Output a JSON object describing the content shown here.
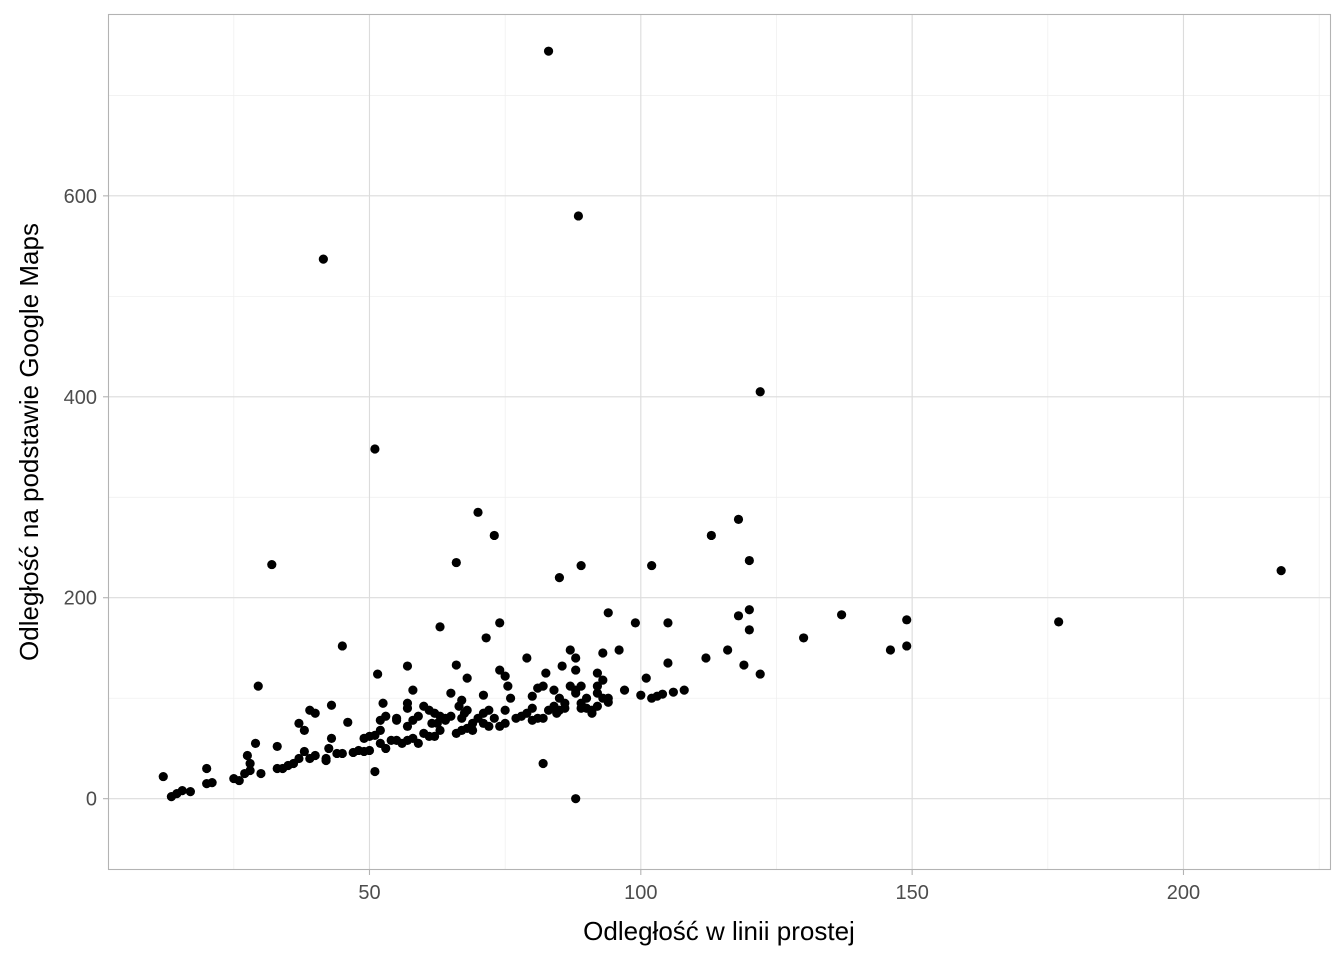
{
  "chart_data": {
    "type": "scatter",
    "title": "",
    "xlabel": "Odległość w linii prostej",
    "ylabel": "Odległość na podstawie Google Maps",
    "xlim": [
      2,
      227
    ],
    "ylim": [
      -70,
      780
    ],
    "x_ticks": [
      50,
      100,
      150,
      200
    ],
    "y_ticks": [
      0,
      200,
      400,
      600
    ],
    "x_tick_labels": [
      "50",
      "100",
      "150",
      "200"
    ],
    "y_tick_labels": [
      "0",
      "200",
      "400",
      "600"
    ],
    "grid": true,
    "point_color": "#000000",
    "points": [
      [
        12,
        22
      ],
      [
        13.5,
        2
      ],
      [
        14.5,
        5
      ],
      [
        15.5,
        8
      ],
      [
        17,
        7
      ],
      [
        20,
        15
      ],
      [
        21,
        16
      ],
      [
        20,
        30
      ],
      [
        25,
        20
      ],
      [
        26,
        18
      ],
      [
        27,
        25
      ],
      [
        27.5,
        43
      ],
      [
        28,
        35
      ],
      [
        28,
        28
      ],
      [
        29,
        55
      ],
      [
        29.5,
        112
      ],
      [
        30,
        25
      ],
      [
        32,
        233
      ],
      [
        33,
        52
      ],
      [
        33,
        30
      ],
      [
        34,
        30
      ],
      [
        35,
        33
      ],
      [
        36,
        35
      ],
      [
        37,
        40
      ],
      [
        37,
        75
      ],
      [
        38,
        68
      ],
      [
        38,
        47
      ],
      [
        39,
        88
      ],
      [
        39,
        40
      ],
      [
        40,
        85
      ],
      [
        40,
        43
      ],
      [
        41.5,
        537
      ],
      [
        42,
        38
      ],
      [
        42,
        40
      ],
      [
        42.5,
        50
      ],
      [
        43,
        60
      ],
      [
        43,
        93
      ],
      [
        44,
        45
      ],
      [
        45,
        45
      ],
      [
        45,
        152
      ],
      [
        46,
        76
      ],
      [
        47,
        46
      ],
      [
        48,
        48
      ],
      [
        49,
        60
      ],
      [
        49,
        47
      ],
      [
        50,
        62
      ],
      [
        50,
        48
      ],
      [
        51,
        63
      ],
      [
        51,
        27
      ],
      [
        51,
        348
      ],
      [
        51.5,
        124
      ],
      [
        52,
        78
      ],
      [
        52,
        68
      ],
      [
        52,
        55
      ],
      [
        52.5,
        95
      ],
      [
        53,
        82
      ],
      [
        53,
        50
      ],
      [
        54,
        58
      ],
      [
        55,
        78
      ],
      [
        55,
        58
      ],
      [
        55,
        80
      ],
      [
        56,
        55
      ],
      [
        57,
        132
      ],
      [
        57,
        90
      ],
      [
        57,
        72
      ],
      [
        57,
        58
      ],
      [
        57,
        95
      ],
      [
        58,
        78
      ],
      [
        58,
        108
      ],
      [
        58,
        60
      ],
      [
        59,
        82
      ],
      [
        59,
        55
      ],
      [
        60,
        65
      ],
      [
        60,
        92
      ],
      [
        61,
        88
      ],
      [
        61,
        62
      ],
      [
        61.5,
        75
      ],
      [
        62,
        62
      ],
      [
        62,
        85
      ],
      [
        62.5,
        75
      ],
      [
        63,
        68
      ],
      [
        63,
        82
      ],
      [
        63,
        171
      ],
      [
        64,
        80
      ],
      [
        64,
        78
      ],
      [
        65,
        105
      ],
      [
        65,
        82
      ],
      [
        66,
        133
      ],
      [
        66,
        65
      ],
      [
        66,
        235
      ],
      [
        66.5,
        92
      ],
      [
        67,
        80
      ],
      [
        67,
        98
      ],
      [
        67,
        68
      ],
      [
        67.5,
        85
      ],
      [
        68,
        88
      ],
      [
        68,
        120
      ],
      [
        68,
        70
      ],
      [
        69,
        75
      ],
      [
        69,
        68
      ],
      [
        70,
        285
      ],
      [
        70,
        80
      ],
      [
        71,
        75
      ],
      [
        71,
        103
      ],
      [
        71,
        85
      ],
      [
        71.5,
        160
      ],
      [
        72,
        72
      ],
      [
        72,
        88
      ],
      [
        73,
        262
      ],
      [
        73,
        80
      ],
      [
        74,
        175
      ],
      [
        74,
        128
      ],
      [
        74,
        72
      ],
      [
        75,
        122
      ],
      [
        75,
        88
      ],
      [
        75,
        75
      ],
      [
        75.5,
        112
      ],
      [
        76,
        100
      ],
      [
        77,
        80
      ],
      [
        78,
        82
      ],
      [
        79,
        85
      ],
      [
        79,
        140
      ],
      [
        80,
        90
      ],
      [
        80,
        102
      ],
      [
        80,
        78
      ],
      [
        81,
        80
      ],
      [
        81,
        110
      ],
      [
        82,
        112
      ],
      [
        82,
        80
      ],
      [
        82,
        35
      ],
      [
        82.5,
        125
      ],
      [
        83,
        88
      ],
      [
        83,
        744
      ],
      [
        84,
        108
      ],
      [
        84,
        92
      ],
      [
        84.5,
        85
      ],
      [
        85,
        88
      ],
      [
        85,
        100
      ],
      [
        85,
        220
      ],
      [
        85.5,
        132
      ],
      [
        86,
        95
      ],
      [
        86,
        90
      ],
      [
        87,
        148
      ],
      [
        87,
        112
      ],
      [
        88,
        128
      ],
      [
        88,
        140
      ],
      [
        88,
        108
      ],
      [
        88,
        105
      ],
      [
        88,
        0
      ],
      [
        88.5,
        580
      ],
      [
        89,
        90
      ],
      [
        89,
        232
      ],
      [
        89,
        112
      ],
      [
        89,
        95
      ],
      [
        90,
        100
      ],
      [
        90,
        90
      ],
      [
        91,
        88
      ],
      [
        91,
        85
      ],
      [
        92,
        125
      ],
      [
        92,
        112
      ],
      [
        92,
        105
      ],
      [
        92,
        92
      ],
      [
        93,
        145
      ],
      [
        93,
        118
      ],
      [
        93,
        100
      ],
      [
        94,
        185
      ],
      [
        94,
        100
      ],
      [
        94,
        96
      ],
      [
        96,
        148
      ],
      [
        97,
        108
      ],
      [
        99,
        175
      ],
      [
        100,
        103
      ],
      [
        101,
        120
      ],
      [
        102,
        232
      ],
      [
        102,
        100
      ],
      [
        103,
        102
      ],
      [
        104,
        104
      ],
      [
        105,
        175
      ],
      [
        105,
        135
      ],
      [
        106,
        106
      ],
      [
        108,
        108
      ],
      [
        112,
        140
      ],
      [
        113,
        262
      ],
      [
        116,
        148
      ],
      [
        118,
        182
      ],
      [
        118,
        278
      ],
      [
        119,
        133
      ],
      [
        120,
        237
      ],
      [
        120,
        188
      ],
      [
        120,
        168
      ],
      [
        122,
        124
      ],
      [
        122,
        405
      ],
      [
        130,
        160
      ],
      [
        137,
        183
      ],
      [
        146,
        148
      ],
      [
        149,
        152
      ],
      [
        149,
        178
      ],
      [
        177,
        176
      ],
      [
        218,
        227
      ]
    ]
  }
}
